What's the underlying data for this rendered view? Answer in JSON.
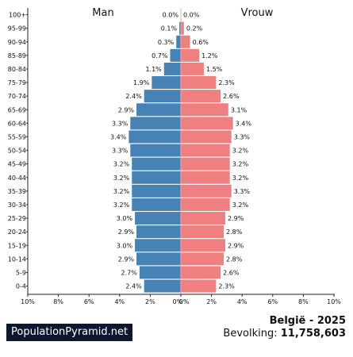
{
  "chart_data": {
    "type": "bar",
    "orientation": "horizontal-pyramid",
    "left_label": "Man",
    "right_label": "Vrouw",
    "age_groups": [
      "100+",
      "95-99",
      "90-94",
      "85-89",
      "80-84",
      "75-79",
      "70-74",
      "65-69",
      "60-64",
      "55-59",
      "50-54",
      "45-49",
      "40-44",
      "35-39",
      "30-34",
      "25-29",
      "20-24",
      "15-19",
      "10-14",
      "5-9",
      "0-4"
    ],
    "series": [
      {
        "name": "Man",
        "color": "#4682b4",
        "values": [
          0.0,
          0.1,
          0.3,
          0.7,
          1.1,
          1.9,
          2.4,
          2.9,
          3.3,
          3.4,
          3.3,
          3.2,
          3.2,
          3.2,
          3.2,
          3.0,
          2.9,
          3.0,
          2.9,
          2.7,
          2.4
        ],
        "labels": [
          "0.0%",
          "0.1%",
          "0.3%",
          "0.7%",
          "1.1%",
          "1.9%",
          "2.4%",
          "2.9%",
          "3.3%",
          "3.4%",
          "3.3%",
          "3.2%",
          "3.2%",
          "3.2%",
          "3.2%",
          "3.0%",
          "2.9%",
          "3.0%",
          "2.9%",
          "2.7%",
          "2.4%"
        ]
      },
      {
        "name": "Vrouw",
        "color": "#f08080",
        "values": [
          0.0,
          0.2,
          0.6,
          1.2,
          1.5,
          2.3,
          2.6,
          3.1,
          3.4,
          3.3,
          3.2,
          3.2,
          3.2,
          3.3,
          3.2,
          2.9,
          2.8,
          2.9,
          2.8,
          2.6,
          2.3
        ],
        "labels": [
          "0.0%",
          "0.2%",
          "0.6%",
          "1.2%",
          "1.5%",
          "2.3%",
          "2.6%",
          "3.1%",
          "3.4%",
          "3.3%",
          "3.2%",
          "3.2%",
          "3.2%",
          "3.3%",
          "3.2%",
          "2.9%",
          "2.8%",
          "2.9%",
          "2.8%",
          "2.6%",
          "2.3%"
        ]
      }
    ],
    "x_range": [
      0,
      10
    ],
    "x_ticks_left": [
      "10%",
      "8%",
      "6%",
      "4%",
      "2%",
      "0%"
    ],
    "x_ticks_right": [
      "0%",
      "2%",
      "4%",
      "6%",
      "8%",
      "10%"
    ],
    "x_tick_values": [
      10,
      8,
      6,
      4,
      2,
      0
    ]
  },
  "footer": {
    "brand": "PopulationPyramid.net",
    "country_year": "België - 2025",
    "population_label": "Bevolking:",
    "population_value": "11,758,603"
  }
}
